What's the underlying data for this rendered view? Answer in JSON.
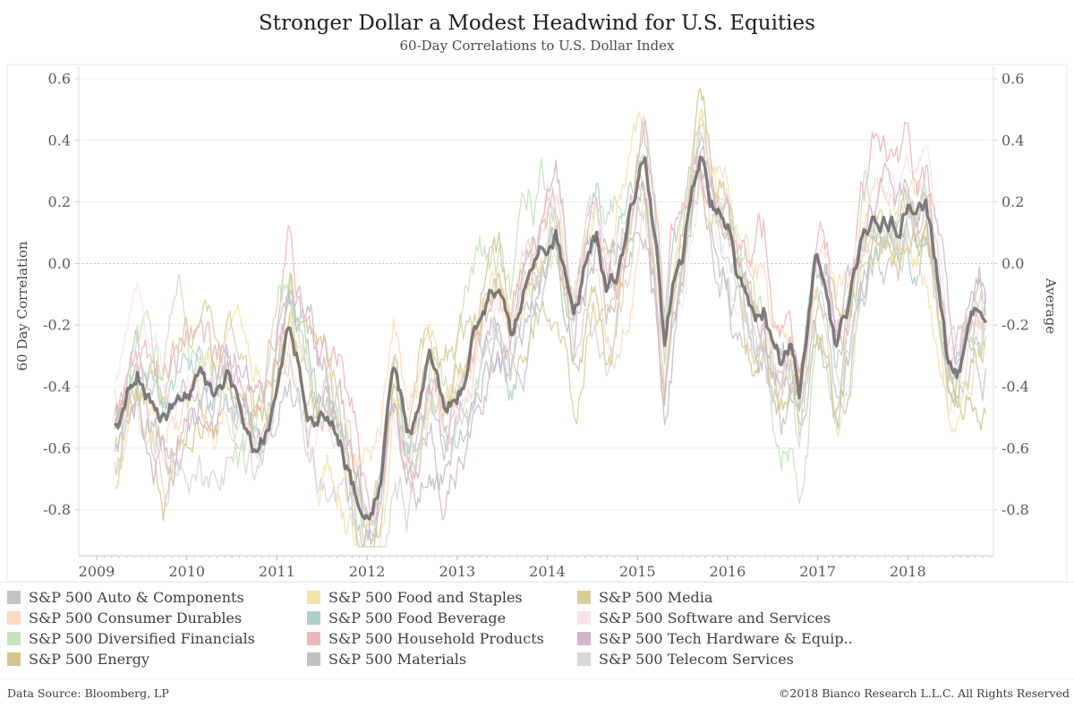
{
  "header": {
    "title": "Stronger Dollar a Modest Headwind for U.S. Equities",
    "subtitle": "60-Day Correlations to U.S. Dollar Index"
  },
  "footer": {
    "source": "Data Source: Bloomberg, LP",
    "copyright": "©2018 Bianco Research L.L.C. All Rights Reserved"
  },
  "chart_data": {
    "type": "line",
    "title": "Stronger Dollar a Modest Headwind for U.S. Equities",
    "subtitle": "60-Day Correlations to U.S. Dollar Index",
    "xlabel": "",
    "ylabel_left": "60 Day Correlation",
    "ylabel_right": "Average",
    "ylim": [
      -0.95,
      0.64
    ],
    "xlim": [
      2008.8,
      2018.95
    ],
    "y_ticks": [
      0.6,
      0.4,
      0.2,
      0.0,
      -0.2,
      -0.4,
      -0.6,
      -0.8
    ],
    "x_ticks": [
      2009,
      2010,
      2011,
      2012,
      2013,
      2014,
      2015,
      2016,
      2017,
      2018
    ],
    "grid": "horizontal-only",
    "zero_line_style": "dotted",
    "legend_position": "bottom",
    "colors": {
      "grid": "#ececea",
      "zero_line": "#b3b0ab",
      "axis": "#c8c8c8",
      "tick_text": "#565a60",
      "frame": "#e7e7e4",
      "average_line": "#656161"
    },
    "series": [
      {
        "name": "S&P 500 Auto & Components",
        "color": "#c7c3c7"
      },
      {
        "name": "S&P 500 Consumer Durables",
        "color": "#fbdcc0"
      },
      {
        "name": "S&P 500 Diversified Financials",
        "color": "#c6e3bd"
      },
      {
        "name": "S&P 500 Energy",
        "color": "#d4c68e"
      },
      {
        "name": "S&P 500 Food and Staples",
        "color": "#f3e3ae"
      },
      {
        "name": "S&P 500 Food Beverage",
        "color": "#afcecb"
      },
      {
        "name": "S&P 500 Household Products",
        "color": "#efb6b9"
      },
      {
        "name": "S&P 500 Materials",
        "color": "#c2c0c0"
      },
      {
        "name": "S&P 500 Media",
        "color": "#d8cd9d"
      },
      {
        "name": "S&P 500 Software and Services",
        "color": "#f9e4ee"
      },
      {
        "name": "S&P 500 Tech Hardware & Equip..",
        "color": "#d2b7cb"
      },
      {
        "name": "S&P 500 Telecom Services",
        "color": "#d8d6d6"
      }
    ],
    "average_series": {
      "name": "Average",
      "color": "#656161",
      "x": [
        2009.25,
        2009.33,
        2009.45,
        2009.6,
        2009.75,
        2009.9,
        2010.0,
        2010.15,
        2010.3,
        2010.45,
        2010.6,
        2010.75,
        2010.9,
        2011.0,
        2011.15,
        2011.3,
        2011.45,
        2011.55,
        2011.7,
        2011.85,
        2011.95,
        2012.05,
        2012.15,
        2012.3,
        2012.45,
        2012.55,
        2012.7,
        2012.85,
        2013.0,
        2013.1,
        2013.25,
        2013.4,
        2013.5,
        2013.6,
        2013.7,
        2013.85,
        2014.0,
        2014.1,
        2014.2,
        2014.3,
        2014.45,
        2014.55,
        2014.65,
        2014.75,
        2014.9,
        2015.0,
        2015.08,
        2015.2,
        2015.3,
        2015.4,
        2015.5,
        2015.6,
        2015.7,
        2015.8,
        2015.9,
        2016.0,
        2016.1,
        2016.2,
        2016.3,
        2016.4,
        2016.5,
        2016.6,
        2016.7,
        2016.8,
        2016.9,
        2016.97,
        2017.1,
        2017.2,
        2017.35,
        2017.5,
        2017.65,
        2017.8,
        2017.9,
        2018.0,
        2018.1,
        2018.2,
        2018.35,
        2018.45,
        2018.55,
        2018.65,
        2018.75,
        2018.85
      ],
      "values": [
        -0.55,
        -0.44,
        -0.32,
        -0.4,
        -0.48,
        -0.44,
        -0.4,
        -0.37,
        -0.45,
        -0.37,
        -0.45,
        -0.55,
        -0.48,
        -0.35,
        -0.19,
        -0.38,
        -0.5,
        -0.46,
        -0.55,
        -0.72,
        -0.8,
        -0.83,
        -0.7,
        -0.34,
        -0.55,
        -0.5,
        -0.32,
        -0.48,
        -0.42,
        -0.35,
        -0.22,
        -0.12,
        -0.15,
        -0.26,
        -0.13,
        -0.02,
        0.05,
        0.1,
        -0.05,
        -0.22,
        0.02,
        0.07,
        -0.1,
        -0.05,
        0.1,
        0.25,
        0.31,
        0.05,
        -0.3,
        -0.05,
        0.02,
        0.25,
        0.4,
        0.25,
        0.18,
        0.15,
        0.0,
        -0.1,
        -0.18,
        -0.13,
        -0.3,
        -0.37,
        -0.3,
        -0.43,
        -0.2,
        0.0,
        -0.05,
        -0.28,
        -0.15,
        0.05,
        0.12,
        0.15,
        0.13,
        0.2,
        0.15,
        0.17,
        -0.1,
        -0.35,
        -0.37,
        -0.25,
        -0.17,
        -0.18
      ]
    }
  }
}
